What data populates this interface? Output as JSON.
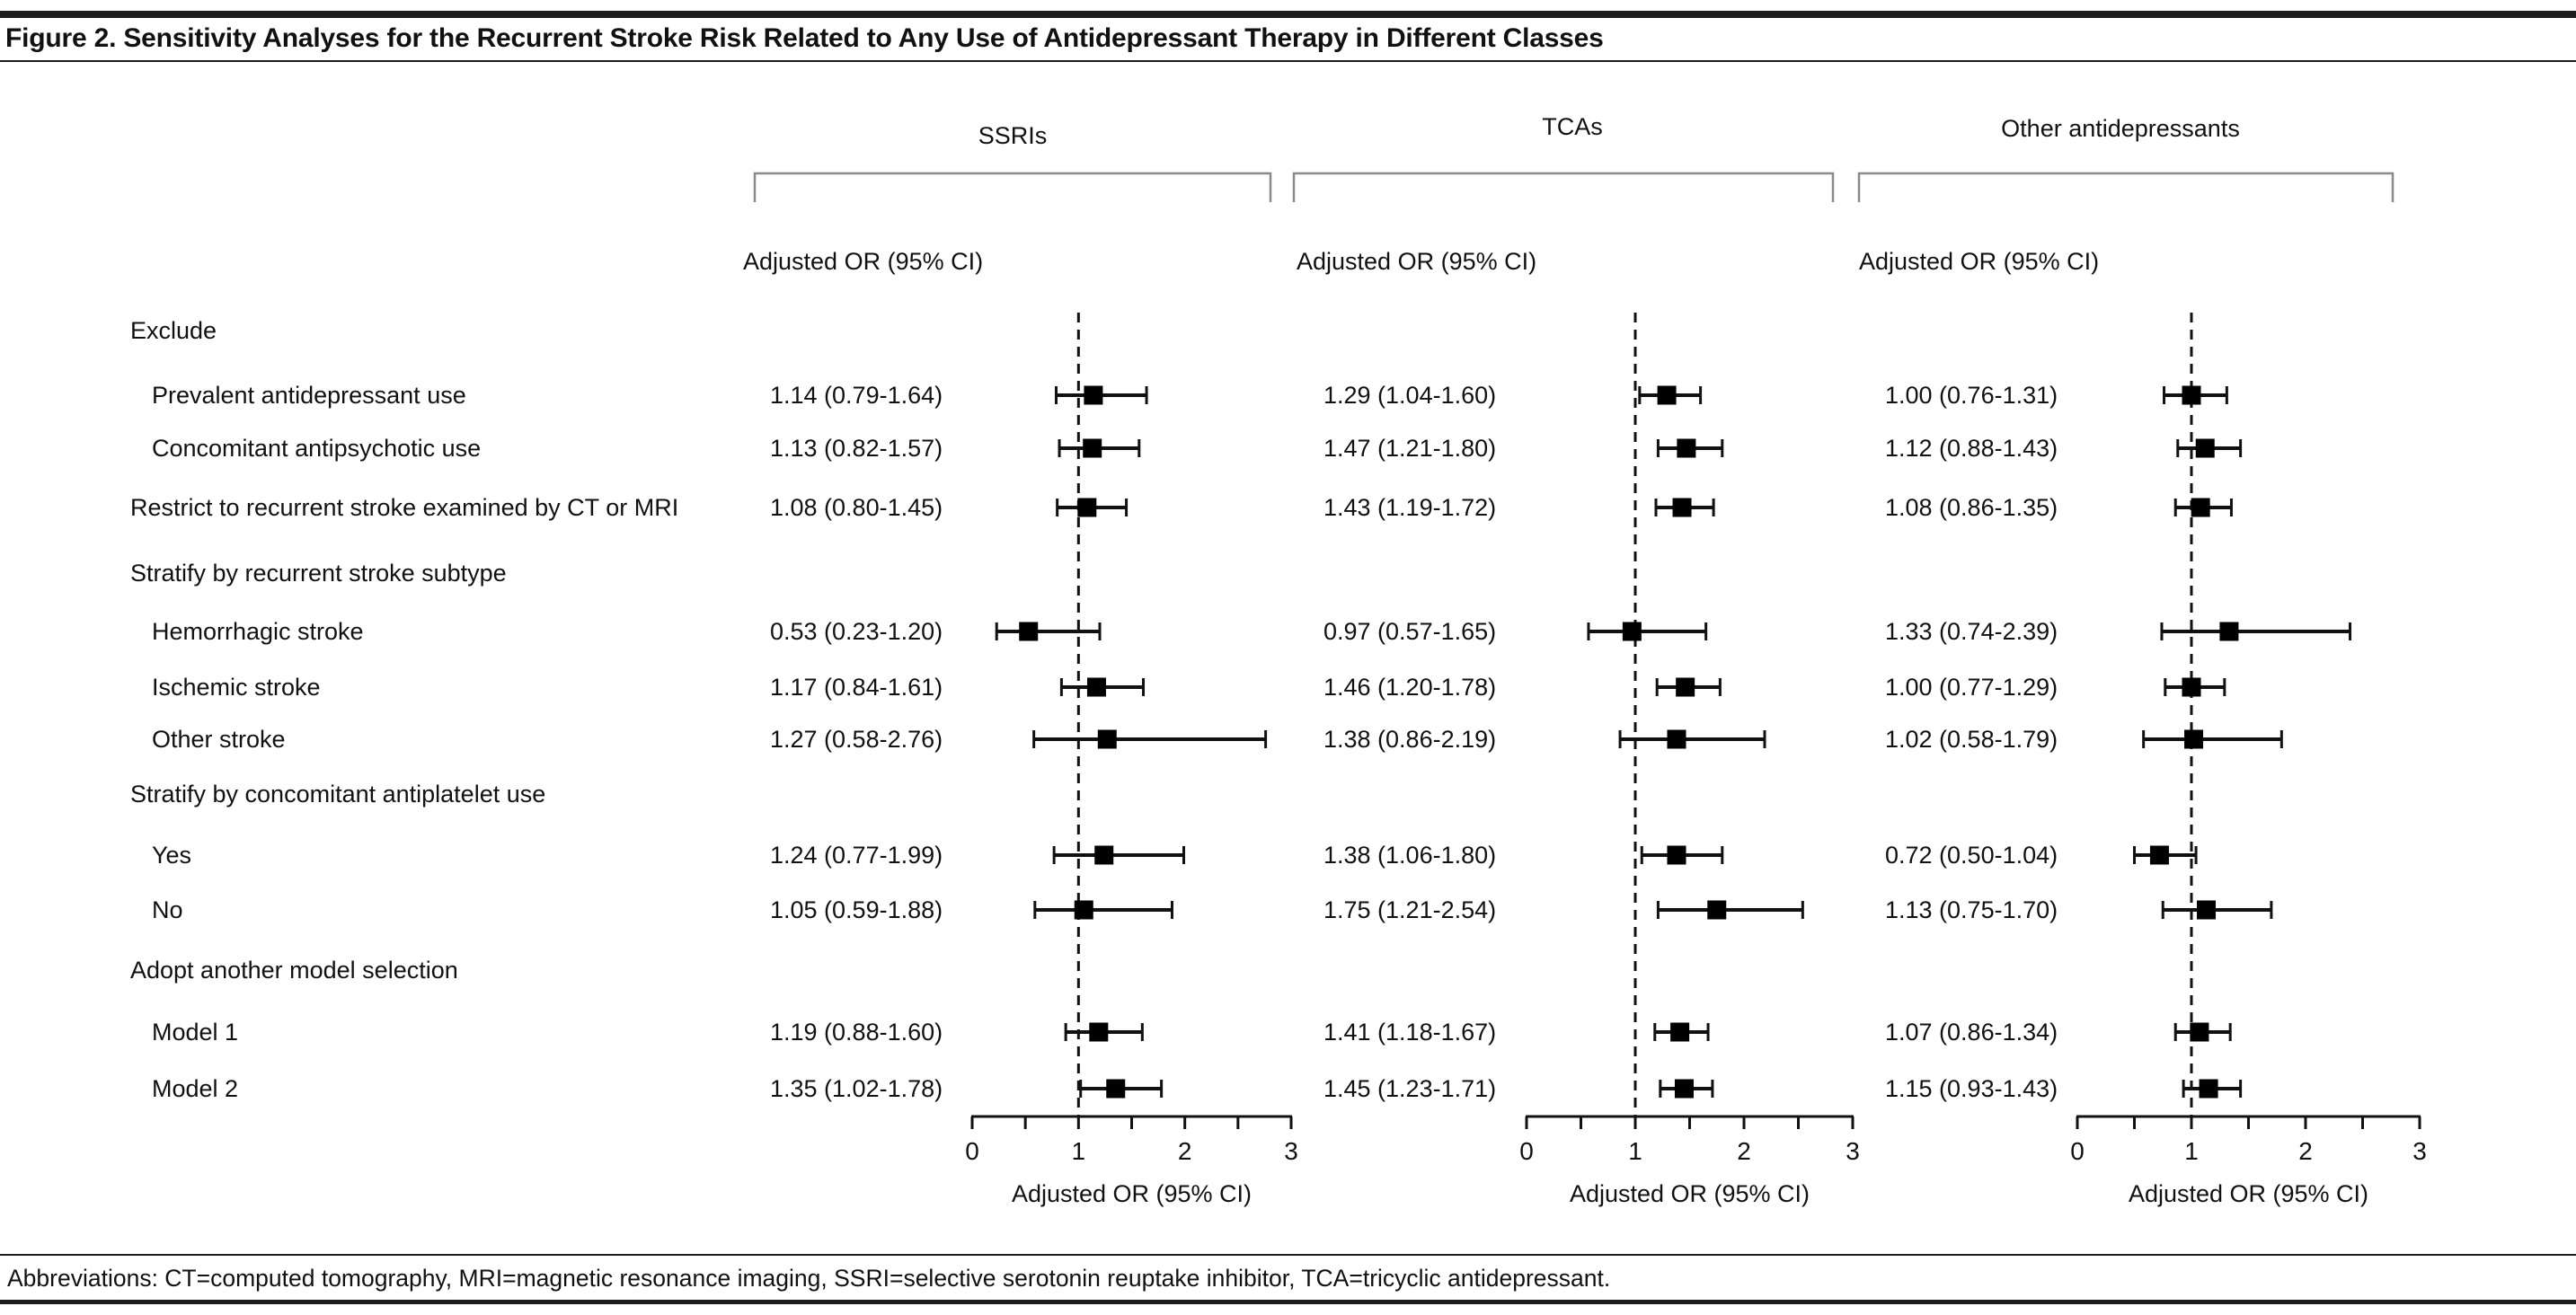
{
  "figure": {
    "title": "Figure 2. Sensitivity Analyses for the Recurrent Stroke Risk Related to Any Use of Antidepressant Therapy in Different Classes",
    "abbreviations": "Abbreviations: CT=computed tomography, MRI=magnetic resonance imaging, SSRI=selective serotonin reuptake inhibitor, TCA=tricyclic antidepressant."
  },
  "chart_data": {
    "type": "scatter",
    "variant": "forest-plot",
    "x_axis": {
      "label": "Adjusted OR (95% CI)",
      "range": [
        0,
        3
      ],
      "major_ticks": [
        0,
        1,
        2,
        3
      ],
      "minor_ticks": [
        0.5,
        1.5,
        2.5
      ],
      "reference_line": 1
    },
    "rows": [
      {
        "label": "Exclude",
        "indent": false,
        "group_header": true
      },
      {
        "label": "Prevalent antidepressant use",
        "indent": true,
        "group_header": false
      },
      {
        "label": "Concomitant antipsychotic use",
        "indent": true,
        "group_header": false
      },
      {
        "label": "Restrict to recurrent stroke examined by CT or MRI",
        "indent": false,
        "group_header": false
      },
      {
        "label": "Stratify by recurrent stroke subtype",
        "indent": false,
        "group_header": true
      },
      {
        "label": "Hemorrhagic stroke",
        "indent": true,
        "group_header": false
      },
      {
        "label": "Ischemic stroke",
        "indent": true,
        "group_header": false
      },
      {
        "label": "Other stroke",
        "indent": true,
        "group_header": false
      },
      {
        "label": "Stratify by concomitant antiplatelet use",
        "indent": false,
        "group_header": true
      },
      {
        "label": "Yes",
        "indent": true,
        "group_header": false
      },
      {
        "label": "No",
        "indent": true,
        "group_header": false
      },
      {
        "label": "Adopt another model selection",
        "indent": false,
        "group_header": true
      },
      {
        "label": "Model 1",
        "indent": true,
        "group_header": false
      },
      {
        "label": "Model 2",
        "indent": true,
        "group_header": false
      }
    ],
    "panels": [
      {
        "title": "SSRIs",
        "column_header": "Adjusted OR (95% CI)",
        "xlabel": "Adjusted OR (95% CI)",
        "estimates": [
          {
            "row": "Prevalent antidepressant use",
            "text": "1.14 (0.79-1.64)",
            "or": 1.14,
            "ci_low": 0.79,
            "ci_high": 1.64
          },
          {
            "row": "Concomitant antipsychotic use",
            "text": "1.13 (0.82-1.57)",
            "or": 1.13,
            "ci_low": 0.82,
            "ci_high": 1.57
          },
          {
            "row": "Restrict to recurrent stroke examined by CT or MRI",
            "text": "1.08 (0.80-1.45)",
            "or": 1.08,
            "ci_low": 0.8,
            "ci_high": 1.45
          },
          {
            "row": "Hemorrhagic stroke",
            "text": "0.53 (0.23-1.20)",
            "or": 0.53,
            "ci_low": 0.23,
            "ci_high": 1.2
          },
          {
            "row": "Ischemic stroke",
            "text": "1.17 (0.84-1.61)",
            "or": 1.17,
            "ci_low": 0.84,
            "ci_high": 1.61
          },
          {
            "row": "Other stroke",
            "text": "1.27 (0.58-2.76)",
            "or": 1.27,
            "ci_low": 0.58,
            "ci_high": 2.76
          },
          {
            "row": "Yes",
            "text": "1.24 (0.77-1.99)",
            "or": 1.24,
            "ci_low": 0.77,
            "ci_high": 1.99
          },
          {
            "row": "No",
            "text": "1.05 (0.59-1.88)",
            "or": 1.05,
            "ci_low": 0.59,
            "ci_high": 1.88
          },
          {
            "row": "Model 1",
            "text": "1.19 (0.88-1.60)",
            "or": 1.19,
            "ci_low": 0.88,
            "ci_high": 1.6
          },
          {
            "row": "Model 2",
            "text": "1.35 (1.02-1.78)",
            "or": 1.35,
            "ci_low": 1.02,
            "ci_high": 1.78
          }
        ]
      },
      {
        "title": "TCAs",
        "column_header": "Adjusted OR (95% CI)",
        "xlabel": "Adjusted OR (95% CI)",
        "estimates": [
          {
            "row": "Prevalent antidepressant use",
            "text": "1.29 (1.04-1.60)",
            "or": 1.29,
            "ci_low": 1.04,
            "ci_high": 1.6
          },
          {
            "row": "Concomitant antipsychotic use",
            "text": "1.47 (1.21-1.80)",
            "or": 1.47,
            "ci_low": 1.21,
            "ci_high": 1.8
          },
          {
            "row": "Restrict to recurrent stroke examined by CT or MRI",
            "text": "1.43 (1.19-1.72)",
            "or": 1.43,
            "ci_low": 1.19,
            "ci_high": 1.72
          },
          {
            "row": "Hemorrhagic stroke",
            "text": "0.97 (0.57-1.65)",
            "or": 0.97,
            "ci_low": 0.57,
            "ci_high": 1.65
          },
          {
            "row": "Ischemic stroke",
            "text": "1.46 (1.20-1.78)",
            "or": 1.46,
            "ci_low": 1.2,
            "ci_high": 1.78
          },
          {
            "row": "Other stroke",
            "text": "1.38 (0.86-2.19)",
            "or": 1.38,
            "ci_low": 0.86,
            "ci_high": 2.19
          },
          {
            "row": "Yes",
            "text": "1.38 (1.06-1.80)",
            "or": 1.38,
            "ci_low": 1.06,
            "ci_high": 1.8
          },
          {
            "row": "No",
            "text": "1.75 (1.21-2.54)",
            "or": 1.75,
            "ci_low": 1.21,
            "ci_high": 2.54
          },
          {
            "row": "Model 1",
            "text": "1.41 (1.18-1.67)",
            "or": 1.41,
            "ci_low": 1.18,
            "ci_high": 1.67
          },
          {
            "row": "Model 2",
            "text": "1.45 (1.23-1.71)",
            "or": 1.45,
            "ci_low": 1.23,
            "ci_high": 1.71
          }
        ]
      },
      {
        "title": "Other antidepressants",
        "column_header": "Adjusted OR (95% CI)",
        "xlabel": "Adjusted OR (95% CI)",
        "estimates": [
          {
            "row": "Prevalent antidepressant use",
            "text": "1.00 (0.76-1.31)",
            "or": 1.0,
            "ci_low": 0.76,
            "ci_high": 1.31
          },
          {
            "row": "Concomitant antipsychotic use",
            "text": "1.12 (0.88-1.43)",
            "or": 1.12,
            "ci_low": 0.88,
            "ci_high": 1.43
          },
          {
            "row": "Restrict to recurrent stroke examined by CT or MRI",
            "text": "1.08 (0.86-1.35)",
            "or": 1.08,
            "ci_low": 0.86,
            "ci_high": 1.35
          },
          {
            "row": "Hemorrhagic stroke",
            "text": "1.33 (0.74-2.39)",
            "or": 1.33,
            "ci_low": 0.74,
            "ci_high": 2.39
          },
          {
            "row": "Ischemic stroke",
            "text": "1.00 (0.77-1.29)",
            "or": 1.0,
            "ci_low": 0.77,
            "ci_high": 1.29
          },
          {
            "row": "Other stroke",
            "text": "1.02 (0.58-1.79)",
            "or": 1.02,
            "ci_low": 0.58,
            "ci_high": 1.79
          },
          {
            "row": "Yes",
            "text": "0.72 (0.50-1.04)",
            "or": 0.72,
            "ci_low": 0.5,
            "ci_high": 1.04
          },
          {
            "row": "No",
            "text": "1.13 (0.75-1.70)",
            "or": 1.13,
            "ci_low": 0.75,
            "ci_high": 1.7
          },
          {
            "row": "Model 1",
            "text": "1.07 (0.86-1.34)",
            "or": 1.07,
            "ci_low": 0.86,
            "ci_high": 1.34
          },
          {
            "row": "Model 2",
            "text": "1.15 (0.93-1.43)",
            "or": 1.15,
            "ci_low": 0.93,
            "ci_high": 1.43
          }
        ]
      }
    ],
    "colors": {
      "ink": "#111111",
      "marker": "#000000",
      "bracket": "#8a8a8a"
    }
  }
}
